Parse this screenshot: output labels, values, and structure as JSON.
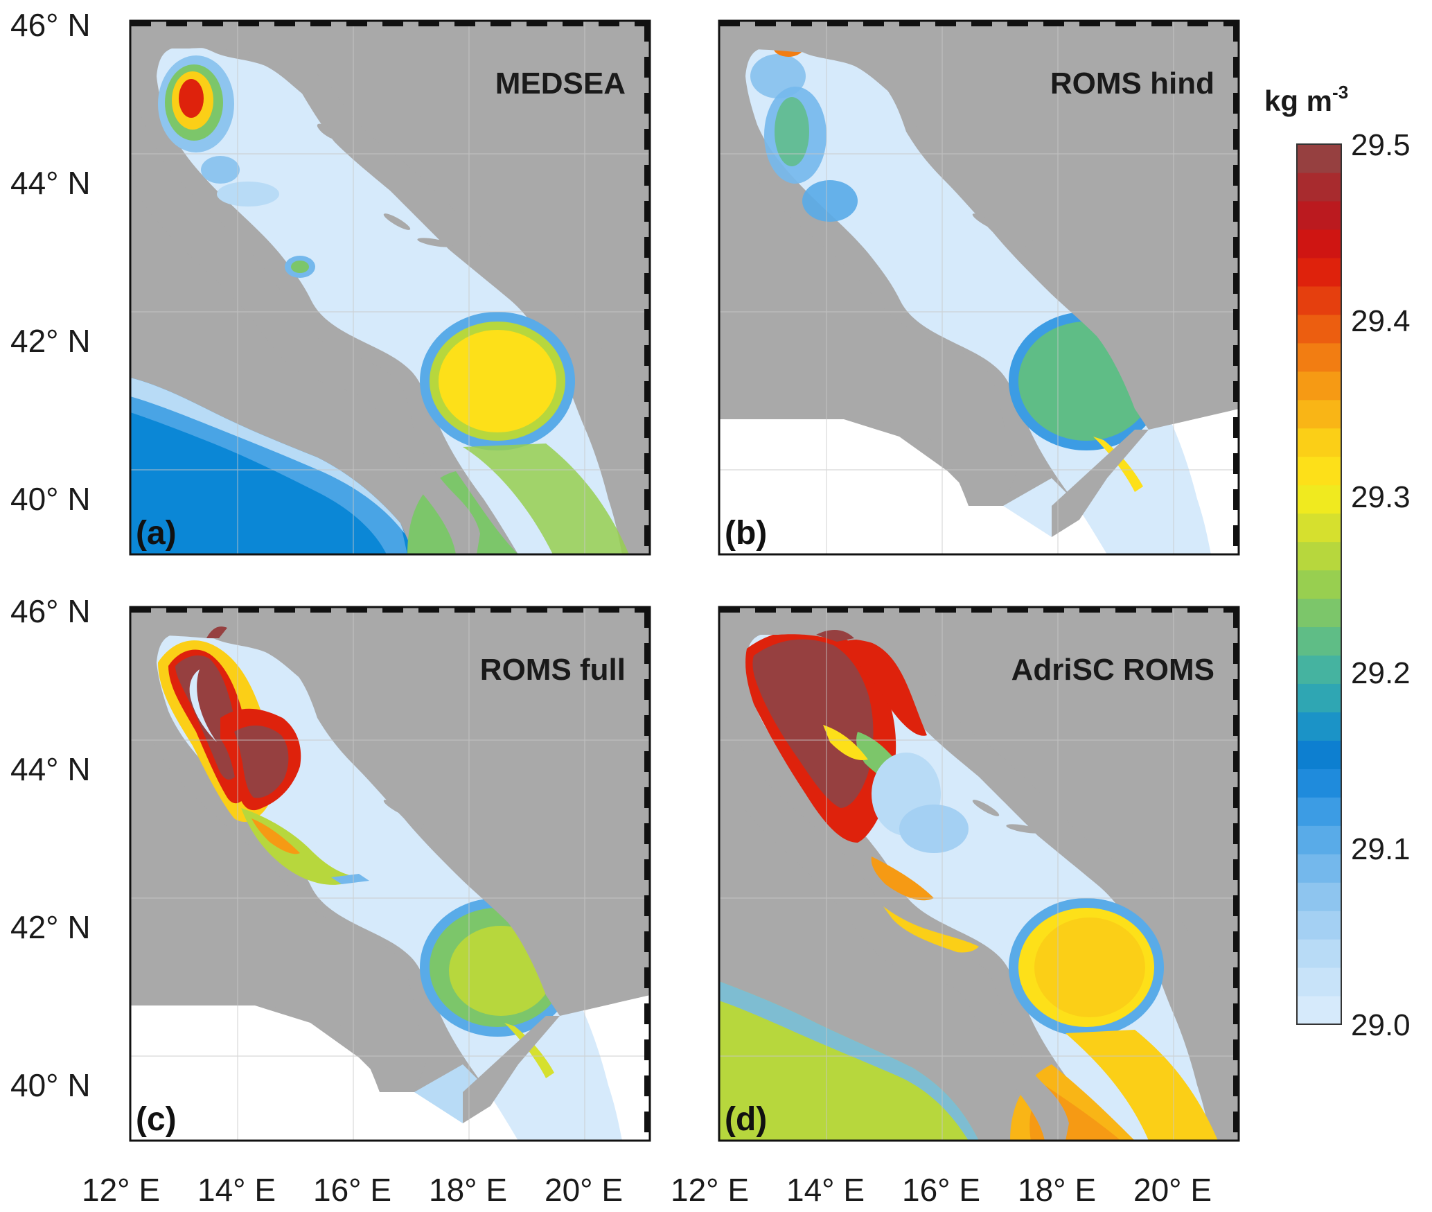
{
  "panels": [
    {
      "letter": "(a)",
      "title": "MEDSEA",
      "west_sea": "deep"
    },
    {
      "letter": "(b)",
      "title": "ROMS hind",
      "west_sea": "none"
    },
    {
      "letter": "(c)",
      "title": "ROMS full",
      "west_sea": "none"
    },
    {
      "letter": "(d)",
      "title": "AdriSC ROMS",
      "west_sea": "shallow"
    }
  ],
  "lat_labels": [
    "46° N",
    "44° N",
    "42° N",
    "40° N"
  ],
  "lon_labels": [
    "12° E",
    "14° E",
    "16° E",
    "18° E",
    "20° E"
  ],
  "colorbar": {
    "unit_base": "kg m",
    "unit_exp": "-3",
    "min": 29.0,
    "max": 29.5,
    "ticks": [
      "29.5",
      "29.4",
      "29.3",
      "29.2",
      "29.1",
      "29.0"
    ],
    "colors": [
      "#d6eafb",
      "#c8e3f9",
      "#b8dbf6",
      "#a4d0f3",
      "#8ec5ef",
      "#74b8ec",
      "#59abe8",
      "#3c9ce4",
      "#1f8bdc",
      "#0d7fd0",
      "#1b93c7",
      "#2fa6b3",
      "#45b3a0",
      "#5fbd86",
      "#7cc66a",
      "#98cf50",
      "#b7d73d",
      "#d6e02e",
      "#f0ea1f",
      "#fde019",
      "#fbcf17",
      "#f9b516",
      "#f69a14",
      "#f27d12",
      "#ec5e10",
      "#e53f0e",
      "#de220c",
      "#cf1512",
      "#bb1a1f",
      "#a82b2e",
      "#964040"
    ],
    "colors_order": "bottom-to-top"
  },
  "palette": {
    "land": "#a9a9a9",
    "outside_domain": "#ffffff",
    "background_sea": "#d6eafb",
    "deep_blue": "#0b87d6",
    "frame": "#111111"
  }
}
